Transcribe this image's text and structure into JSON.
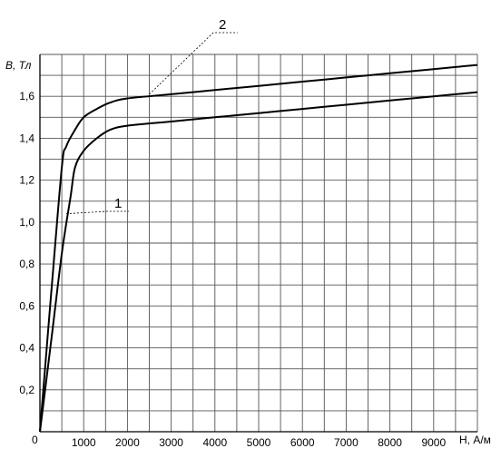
{
  "chart_data": {
    "type": "line",
    "title": "",
    "xlabel": "H, А/м",
    "ylabel": "B, Тл",
    "xlim": [
      0,
      10000
    ],
    "ylim": [
      0,
      1.8
    ],
    "grid": true,
    "x_tick_labels": [
      "1000",
      "2000",
      "3000",
      "4000",
      "5000",
      "6000",
      "7000",
      "8000",
      "9000"
    ],
    "x_tick_values": [
      1000,
      2000,
      3000,
      4000,
      5000,
      6000,
      7000,
      8000,
      9000
    ],
    "y_tick_labels": [
      "0,2",
      "0,4",
      "0,6",
      "0,8",
      "1,0",
      "1,2",
      "1,4",
      "1,6"
    ],
    "y_tick_values": [
      0.2,
      0.4,
      0.6,
      0.8,
      1.0,
      1.2,
      1.4,
      1.6
    ],
    "origin_label": "0",
    "series": [
      {
        "label": "1",
        "x": [
          0,
          250,
          500,
          700,
          800,
          1000,
          1300,
          1600,
          2000,
          3000,
          4000,
          5000,
          6000,
          7000,
          8000,
          9000,
          10000
        ],
        "y": [
          0,
          0.42,
          0.85,
          1.12,
          1.26,
          1.34,
          1.4,
          1.44,
          1.46,
          1.48,
          1.5,
          1.52,
          1.54,
          1.56,
          1.58,
          1.6,
          1.62
        ]
      },
      {
        "label": "2",
        "x": [
          0,
          250,
          500,
          600,
          800,
          1000,
          1300,
          1600,
          2000,
          3000,
          4000,
          5000,
          6000,
          7000,
          8000,
          9000,
          10000
        ],
        "y": [
          0,
          0.64,
          1.26,
          1.36,
          1.44,
          1.5,
          1.54,
          1.57,
          1.59,
          1.61,
          1.63,
          1.65,
          1.67,
          1.69,
          1.71,
          1.73,
          1.75
        ]
      }
    ],
    "annotations": [
      {
        "text": "1",
        "series": "1",
        "at": [
          600,
          1.04
        ]
      },
      {
        "text": "2",
        "series": "2",
        "at": [
          2500,
          1.61
        ]
      }
    ]
  }
}
